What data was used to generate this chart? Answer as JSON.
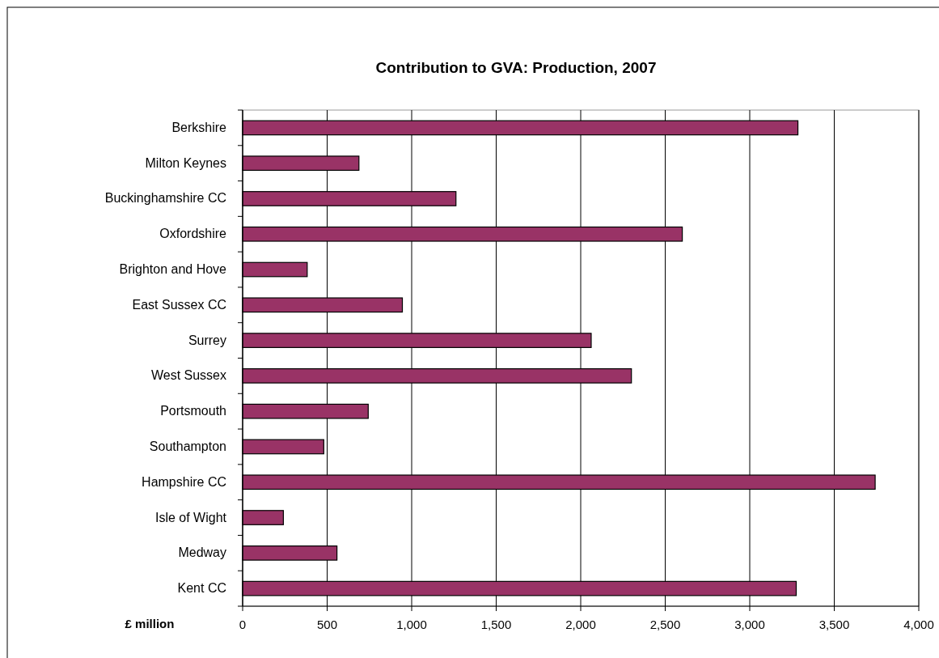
{
  "chart_data": {
    "type": "bar",
    "orientation": "horizontal",
    "title": "Contribution to GVA: Production, 2007",
    "xlabel": "£ million",
    "categories": [
      "Berkshire",
      "Milton Keynes",
      "Buckinghamshire CC",
      "Oxfordshire",
      "Brighton and Hove",
      "East Sussex CC",
      "Surrey",
      "West Sussex",
      "Portsmouth",
      "Southampton",
      "Hampshire CC",
      "Isle of Wight",
      "Medway",
      "Kent CC"
    ],
    "values": [
      3285,
      688,
      1262,
      2601,
      382,
      945,
      2062,
      2300,
      743,
      480,
      3742,
      241,
      558,
      3275
    ],
    "color": "#993366",
    "xlim": [
      0,
      4000
    ],
    "xticks": [
      {
        "value": 0,
        "label": "0"
      },
      {
        "value": 500,
        "label": "500"
      },
      {
        "value": 1000,
        "label": "1,000"
      },
      {
        "value": 1500,
        "label": "1,500"
      },
      {
        "value": 2000,
        "label": "2,000"
      },
      {
        "value": 2500,
        "label": "2,500"
      },
      {
        "value": 3000,
        "label": "3,000"
      },
      {
        "value": 3500,
        "label": "3,500"
      },
      {
        "value": 4000,
        "label": "4,000"
      }
    ],
    "grid": "x"
  }
}
